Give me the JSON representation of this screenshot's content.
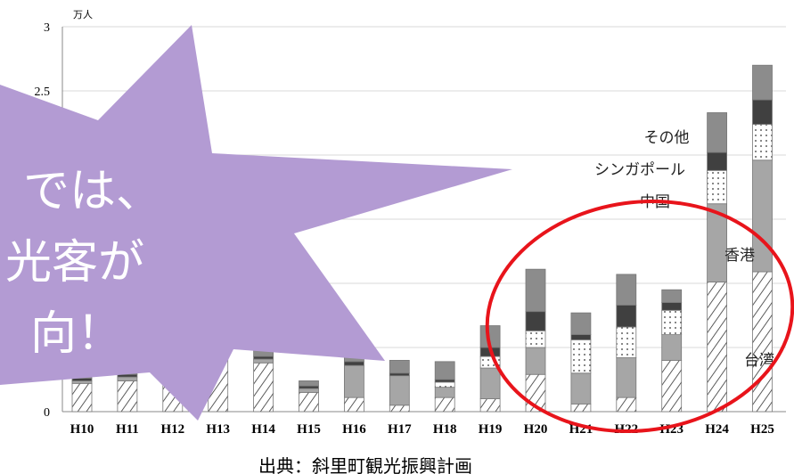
{
  "chart_data": {
    "type": "stacked_bar",
    "unit": "万人",
    "source": "出典：斜里町観光振興計画",
    "categories": [
      "H10",
      "H11",
      "H12",
      "H13",
      "H14",
      "H15",
      "H16",
      "H17",
      "H18",
      "H19",
      "H20",
      "H21",
      "H22",
      "H23",
      "H24",
      "H25"
    ],
    "ylim": [
      0,
      3
    ],
    "yticks": [
      0,
      0.5,
      1,
      1.5,
      2,
      2.5,
      3
    ],
    "grid": true,
    "series": [
      {
        "name": "台湾",
        "color": "#ffffff",
        "pattern": "hatch",
        "values": [
          0.22,
          0.24,
          0.22,
          0.53,
          0.38,
          0.15,
          0.11,
          0.05,
          0.11,
          0.1,
          0.29,
          0.06,
          0.11,
          0.4,
          1.01,
          1.09
        ]
      },
      {
        "name": "香港",
        "color": "#a6a6a6",
        "values": [
          0.02,
          0.03,
          0.03,
          0.02,
          0.03,
          0.03,
          0.25,
          0.23,
          0.08,
          0.24,
          0.21,
          0.24,
          0.31,
          0.2,
          0.61,
          0.87
        ]
      },
      {
        "name": "中国",
        "color": "#ffffff",
        "pattern": "dots",
        "values": [
          0,
          0,
          0,
          0,
          0,
          0,
          0,
          0,
          0.04,
          0.09,
          0.13,
          0.26,
          0.24,
          0.19,
          0.26,
          0.28
        ]
      },
      {
        "name": "シンガポール",
        "color": "#404040",
        "values": [
          0.02,
          0.02,
          0.02,
          0,
          0.02,
          0.02,
          0.03,
          0.02,
          0.02,
          0.07,
          0.15,
          0.04,
          0.17,
          0.06,
          0.14,
          0.19
        ]
      },
      {
        "name": "その他",
        "color": "#8c8c8c",
        "values": [
          0.02,
          0.03,
          0.03,
          0.02,
          0.05,
          0.04,
          0.09,
          0.1,
          0.14,
          0.17,
          0.33,
          0.17,
          0.24,
          0.1,
          0.31,
          0.27
        ]
      }
    ]
  },
  "callout": {
    "lines": [
      "では、",
      "光客が",
      "向！"
    ]
  }
}
